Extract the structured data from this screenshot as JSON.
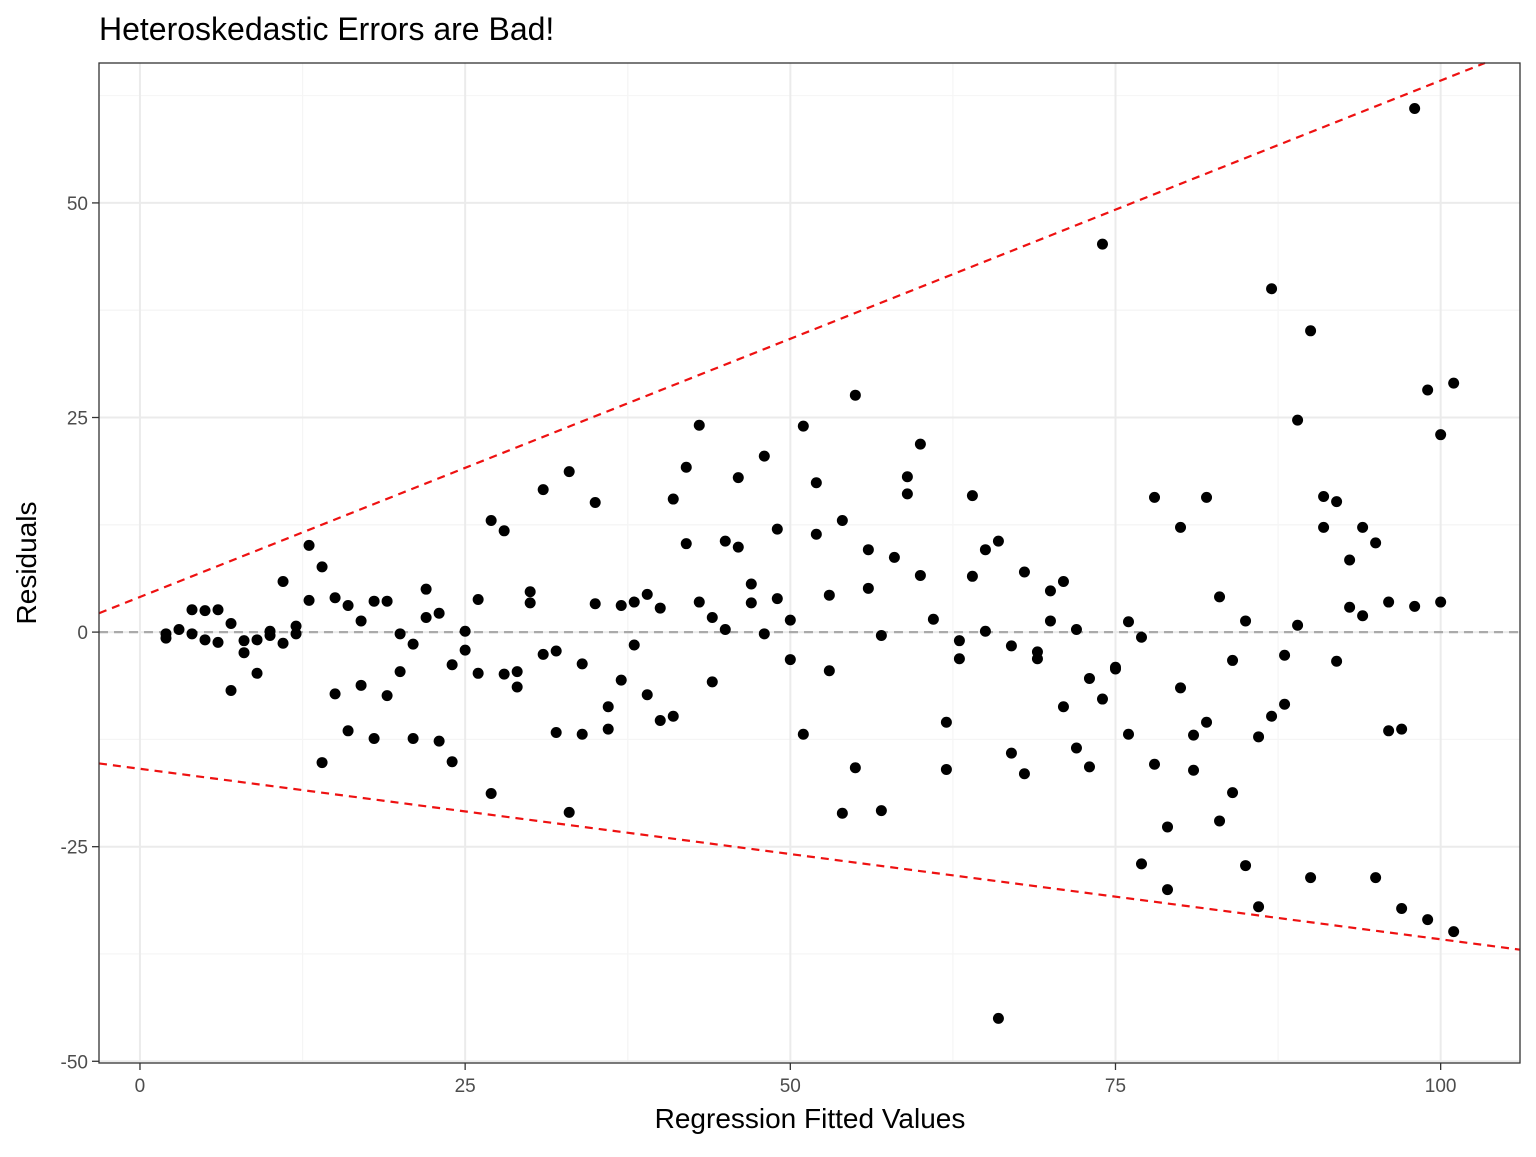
{
  "chart_data": {
    "type": "scatter",
    "title": "Heteroskedastic Errors are Bad!",
    "xlabel": "Regression Fitted Values",
    "ylabel": "Residuals",
    "xlim": [
      -3.15,
      106.1
    ],
    "ylim": [
      -50.2,
      66.3
    ],
    "x_ticks": [
      0,
      25,
      50,
      75,
      100
    ],
    "y_ticks": [
      -50,
      -25,
      0,
      25,
      50
    ],
    "x_tick_labels": [
      "0",
      "25",
      "50",
      "75",
      "100"
    ],
    "y_tick_labels": [
      "-50",
      "-25",
      "0",
      "25",
      "50"
    ],
    "grid": true,
    "legend": "none",
    "reference_lines": [
      {
        "name": "zero line",
        "style": "dashed",
        "color": "#aaaaaa",
        "x": [
          -3.15,
          106.1
        ],
        "y": [
          0,
          0
        ]
      },
      {
        "name": "upper bound",
        "style": "dashed",
        "color": "#ee1111",
        "x": [
          -3.15,
          103.4
        ],
        "y": [
          2.2,
          66.3
        ]
      },
      {
        "name": "lower bound",
        "style": "dashed",
        "color": "#ee1111",
        "x": [
          -3.15,
          106.1
        ],
        "y": [
          -15.3,
          -37.0
        ]
      }
    ],
    "points": [
      [
        2,
        -0.2
      ],
      [
        2,
        -0.7
      ],
      [
        3,
        0.3
      ],
      [
        4,
        2.6
      ],
      [
        4,
        -0.2
      ],
      [
        5,
        2.5
      ],
      [
        5,
        -0.9
      ],
      [
        6,
        2.6
      ],
      [
        6,
        -1.2
      ],
      [
        7,
        1.0
      ],
      [
        7,
        -6.8
      ],
      [
        8,
        -1.0
      ],
      [
        8,
        -2.4
      ],
      [
        9,
        -0.9
      ],
      [
        9,
        -4.8
      ],
      [
        10,
        0.1
      ],
      [
        10,
        -0.4
      ],
      [
        11,
        5.9
      ],
      [
        11,
        -1.3
      ],
      [
        12,
        0.7
      ],
      [
        12,
        -0.2
      ],
      [
        13,
        10.1
      ],
      [
        13,
        3.7
      ],
      [
        14,
        7.6
      ],
      [
        14,
        -15.2
      ],
      [
        15,
        4.0
      ],
      [
        15,
        -7.2
      ],
      [
        16,
        3.1
      ],
      [
        16,
        -11.5
      ],
      [
        17,
        1.3
      ],
      [
        17,
        -6.2
      ],
      [
        18,
        3.6
      ],
      [
        18,
        -12.4
      ],
      [
        19,
        3.6
      ],
      [
        19,
        -7.4
      ],
      [
        20,
        -0.2
      ],
      [
        20,
        -4.6
      ],
      [
        21,
        -1.4
      ],
      [
        21,
        -12.4
      ],
      [
        22,
        5.0
      ],
      [
        22,
        1.7
      ],
      [
        23,
        2.2
      ],
      [
        23,
        -12.7
      ],
      [
        24,
        -3.8
      ],
      [
        24,
        -15.1
      ],
      [
        25,
        0.1
      ],
      [
        25,
        -2.1
      ],
      [
        26,
        3.8
      ],
      [
        26,
        -4.8
      ],
      [
        27,
        13.0
      ],
      [
        27,
        -18.8
      ],
      [
        28,
        11.8
      ],
      [
        28,
        -4.9
      ],
      [
        29,
        -4.6
      ],
      [
        29,
        -6.4
      ],
      [
        30,
        4.7
      ],
      [
        30,
        3.4
      ],
      [
        31,
        16.6
      ],
      [
        31,
        -2.6
      ],
      [
        32,
        -2.2
      ],
      [
        32,
        -11.7
      ],
      [
        33,
        18.7
      ],
      [
        33,
        -21.0
      ],
      [
        34,
        -3.7
      ],
      [
        34,
        -11.9
      ],
      [
        35,
        15.1
      ],
      [
        35,
        3.3
      ],
      [
        36,
        -8.7
      ],
      [
        36,
        -11.3
      ],
      [
        37,
        3.1
      ],
      [
        37,
        -5.6
      ],
      [
        38,
        3.5
      ],
      [
        38,
        -1.5
      ],
      [
        39,
        4.4
      ],
      [
        39,
        -7.3
      ],
      [
        40,
        2.8
      ],
      [
        40,
        -10.3
      ],
      [
        41,
        15.5
      ],
      [
        41,
        -9.8
      ],
      [
        42,
        19.2
      ],
      [
        42,
        10.3
      ],
      [
        43,
        24.1
      ],
      [
        43,
        3.5
      ],
      [
        44,
        1.7
      ],
      [
        44,
        -5.8
      ],
      [
        45,
        10.6
      ],
      [
        45,
        0.3
      ],
      [
        46,
        18.0
      ],
      [
        46,
        9.9
      ],
      [
        47,
        5.6
      ],
      [
        47,
        3.4
      ],
      [
        48,
        20.5
      ],
      [
        48,
        -0.2
      ],
      [
        49,
        12.0
      ],
      [
        49,
        3.9
      ],
      [
        50,
        1.4
      ],
      [
        50,
        -3.2
      ],
      [
        51,
        24.0
      ],
      [
        51,
        -11.9
      ],
      [
        52,
        17.4
      ],
      [
        52,
        11.4
      ],
      [
        53,
        4.3
      ],
      [
        53,
        -4.5
      ],
      [
        54,
        13.0
      ],
      [
        54,
        -21.1
      ],
      [
        55,
        27.6
      ],
      [
        55,
        -15.8
      ],
      [
        56,
        9.6
      ],
      [
        56,
        5.1
      ],
      [
        57,
        -0.4
      ],
      [
        57,
        -20.8
      ],
      [
        58,
        8.7
      ],
      [
        59,
        18.1
      ],
      [
        59,
        16.1
      ],
      [
        60,
        21.9
      ],
      [
        60,
        6.6
      ],
      [
        61,
        1.5
      ],
      [
        62,
        -10.5
      ],
      [
        62,
        -16.0
      ],
      [
        63,
        -1.0
      ],
      [
        63,
        -3.1
      ],
      [
        64,
        15.9
      ],
      [
        64,
        6.5
      ],
      [
        65,
        9.6
      ],
      [
        65,
        0.1
      ],
      [
        66,
        10.6
      ],
      [
        66,
        -45.0
      ],
      [
        67,
        -1.6
      ],
      [
        67,
        -14.1
      ],
      [
        68,
        7.0
      ],
      [
        68,
        -16.5
      ],
      [
        69,
        -2.3
      ],
      [
        69,
        -3.1
      ],
      [
        70,
        4.8
      ],
      [
        70,
        1.3
      ],
      [
        71,
        5.9
      ],
      [
        71,
        -8.7
      ],
      [
        72,
        0.3
      ],
      [
        72,
        -13.5
      ],
      [
        73,
        -5.4
      ],
      [
        73,
        -15.7
      ],
      [
        74,
        45.2
      ],
      [
        74,
        -7.8
      ],
      [
        75,
        -4.1
      ],
      [
        75,
        -4.3
      ],
      [
        76,
        1.2
      ],
      [
        76,
        -11.9
      ],
      [
        77,
        -0.6
      ],
      [
        77,
        -27.0
      ],
      [
        78,
        15.7
      ],
      [
        78,
        -15.4
      ],
      [
        79,
        -22.7
      ],
      [
        79,
        -30.0
      ],
      [
        80,
        12.2
      ],
      [
        80,
        -6.5
      ],
      [
        81,
        -12.0
      ],
      [
        81,
        -16.1
      ],
      [
        82,
        15.7
      ],
      [
        82,
        -10.5
      ],
      [
        83,
        4.1
      ],
      [
        83,
        -22.0
      ],
      [
        84,
        -3.3
      ],
      [
        84,
        -18.7
      ],
      [
        85,
        1.3
      ],
      [
        85,
        -27.2
      ],
      [
        86,
        -12.2
      ],
      [
        86,
        -32.0
      ],
      [
        87,
        40.0
      ],
      [
        87,
        -9.8
      ],
      [
        88,
        -2.7
      ],
      [
        88,
        -8.4
      ],
      [
        89,
        24.7
      ],
      [
        89,
        0.8
      ],
      [
        90,
        35.1
      ],
      [
        90,
        -28.6
      ],
      [
        91,
        15.8
      ],
      [
        91,
        12.2
      ],
      [
        92,
        15.2
      ],
      [
        92,
        -3.4
      ],
      [
        93,
        8.4
      ],
      [
        93,
        2.9
      ],
      [
        94,
        12.2
      ],
      [
        94,
        1.9
      ],
      [
        95,
        10.4
      ],
      [
        95,
        -28.6
      ],
      [
        96,
        3.5
      ],
      [
        96,
        -11.5
      ],
      [
        97,
        -11.3
      ],
      [
        97,
        -32.2
      ],
      [
        98,
        61.0
      ],
      [
        98,
        3.0
      ],
      [
        99,
        28.2
      ],
      [
        99,
        -33.5
      ],
      [
        100,
        23.0
      ],
      [
        100,
        3.5
      ],
      [
        101,
        29.0
      ],
      [
        101,
        -34.9
      ]
    ],
    "colors": {
      "points": "#000000",
      "grid_major": "#ebebeb",
      "grid_minor": "#f5f5f5",
      "panel_border": "#333333",
      "tick_label": "#4d4d4d"
    }
  }
}
